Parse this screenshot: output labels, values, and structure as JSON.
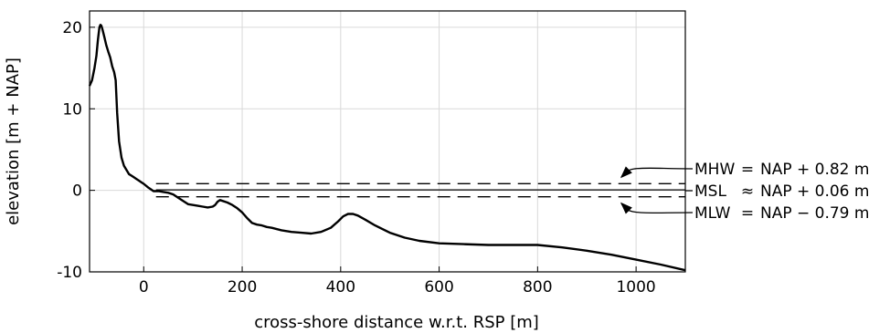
{
  "chart_data": {
    "type": "line",
    "title": "",
    "xlabel": "cross-shore distance w.r.t. RSP [m]",
    "ylabel": "elevation [m + NAP]",
    "xlim": [
      -110,
      1100
    ],
    "ylim": [
      -10,
      22
    ],
    "xticks": [
      0,
      200,
      400,
      600,
      800,
      1000
    ],
    "yticks": [
      -10,
      0,
      10,
      20
    ],
    "xtick_labels": [
      "0",
      "200",
      "400",
      "600",
      "800",
      "1000"
    ],
    "ytick_labels": [
      "-10",
      "0",
      "10",
      "20"
    ],
    "grid": true,
    "series": [
      {
        "x": [
          -110,
          -105,
          -100,
          -96,
          -93,
          -90,
          -88,
          -86,
          -84,
          -80,
          -76,
          -72,
          -68,
          -64,
          -60,
          -57,
          -54,
          -50,
          -45,
          -40,
          -35,
          -30,
          -25,
          -20,
          -15,
          -10,
          -5,
          0,
          10,
          20,
          30,
          40,
          50,
          60,
          70,
          80,
          90,
          100,
          110,
          120,
          130,
          140,
          145,
          150,
          155,
          160,
          170,
          180,
          190,
          200,
          210,
          220,
          230,
          240,
          250,
          260,
          280,
          300,
          320,
          340,
          360,
          380,
          395,
          405,
          415,
          425,
          435,
          450,
          470,
          500,
          530,
          560,
          600,
          650,
          700,
          760,
          800,
          850,
          900,
          950,
          1000,
          1050,
          1100
        ],
        "y": [
          12.8,
          13.5,
          15.0,
          16.5,
          18.5,
          20.0,
          20.3,
          20.2,
          19.8,
          18.8,
          17.8,
          17.0,
          16.3,
          15.2,
          14.5,
          13.5,
          9.5,
          6.0,
          4.0,
          3.0,
          2.5,
          2.0,
          1.8,
          1.6,
          1.4,
          1.2,
          1.0,
          0.8,
          0.3,
          -0.1,
          -0.1,
          -0.2,
          -0.3,
          -0.5,
          -0.9,
          -1.3,
          -1.7,
          -1.8,
          -1.9,
          -2.0,
          -2.1,
          -2.0,
          -1.8,
          -1.4,
          -1.2,
          -1.3,
          -1.5,
          -1.8,
          -2.2,
          -2.7,
          -3.4,
          -4.0,
          -4.2,
          -4.3,
          -4.5,
          -4.6,
          -4.9,
          -5.1,
          -5.2,
          -5.3,
          -5.1,
          -4.6,
          -3.8,
          -3.2,
          -2.9,
          -2.9,
          -3.1,
          -3.6,
          -4.3,
          -5.2,
          -5.8,
          -6.2,
          -6.5,
          -6.6,
          -6.7,
          -6.7,
          -6.7,
          -7.0,
          -7.4,
          -7.9,
          -8.5,
          -9.1,
          -9.8
        ]
      }
    ],
    "levels": [
      {
        "name": "MHW",
        "value": 0.82,
        "style": "dashed",
        "label_op": "=",
        "label_rhs": "NAP + 0.82 m",
        "arrow": "down"
      },
      {
        "name": "MSL",
        "value": 0.06,
        "style": "solid",
        "label_op": "≈",
        "label_rhs": "NAP + 0.06 m"
      },
      {
        "name": "MLW",
        "value": -0.79,
        "style": "dashed",
        "label_op": "=",
        "label_rhs": "NAP − 0.79 m",
        "arrow": "up"
      }
    ]
  }
}
